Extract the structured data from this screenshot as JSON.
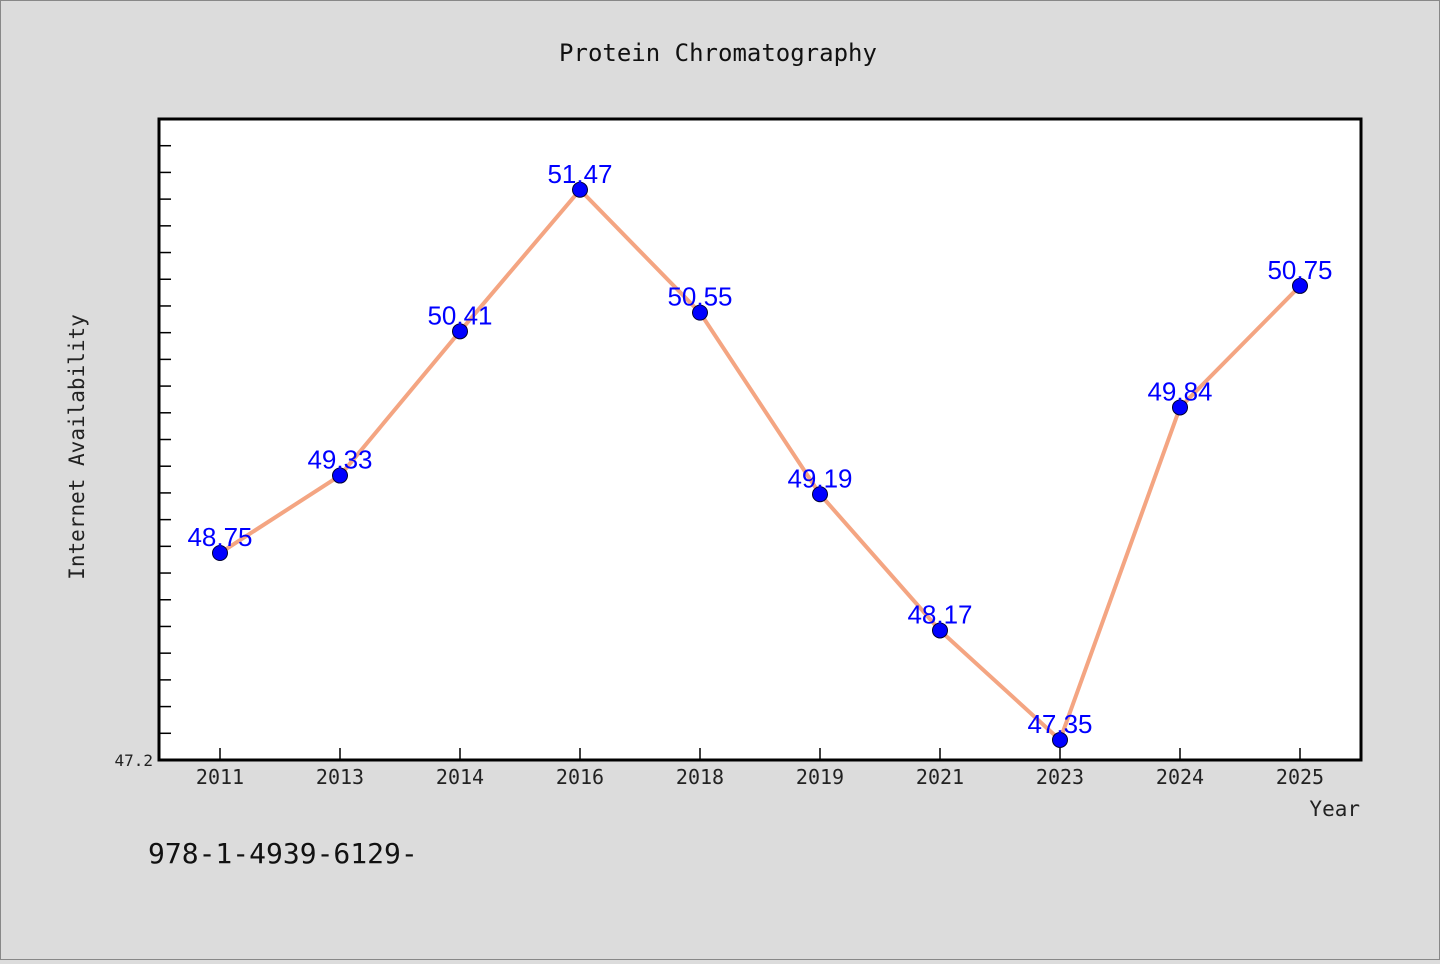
{
  "chart_data": {
    "type": "line",
    "title": "Protein Chromatography",
    "xlabel": "Year",
    "ylabel": "Internet Availability",
    "categories": [
      "2011",
      "2013",
      "2014",
      "2016",
      "2018",
      "2019",
      "2021",
      "2023",
      "2024",
      "2025"
    ],
    "series": [
      {
        "values": [
          48.75,
          49.33,
          50.41,
          51.47,
          50.55,
          49.19,
          48.17,
          47.35,
          49.84,
          50.75
        ],
        "line_color": "#f4a582",
        "marker_color": "#0000ff"
      }
    ],
    "data_labels": [
      "48.75",
      "49.33",
      "50.41",
      "51.47",
      "50.55",
      "49.19",
      "48.17",
      "47.35",
      "49.84",
      "50.75"
    ],
    "data_label_color": "#0000ff",
    "y_tick_labels": [
      "47.2"
    ],
    "ylim": [
      47.2,
      52.0
    ],
    "grid": false,
    "background_color": "#dcdcdc",
    "plot_background_color": "#ffffff"
  },
  "footer_text": "978-1-4939-6129-"
}
